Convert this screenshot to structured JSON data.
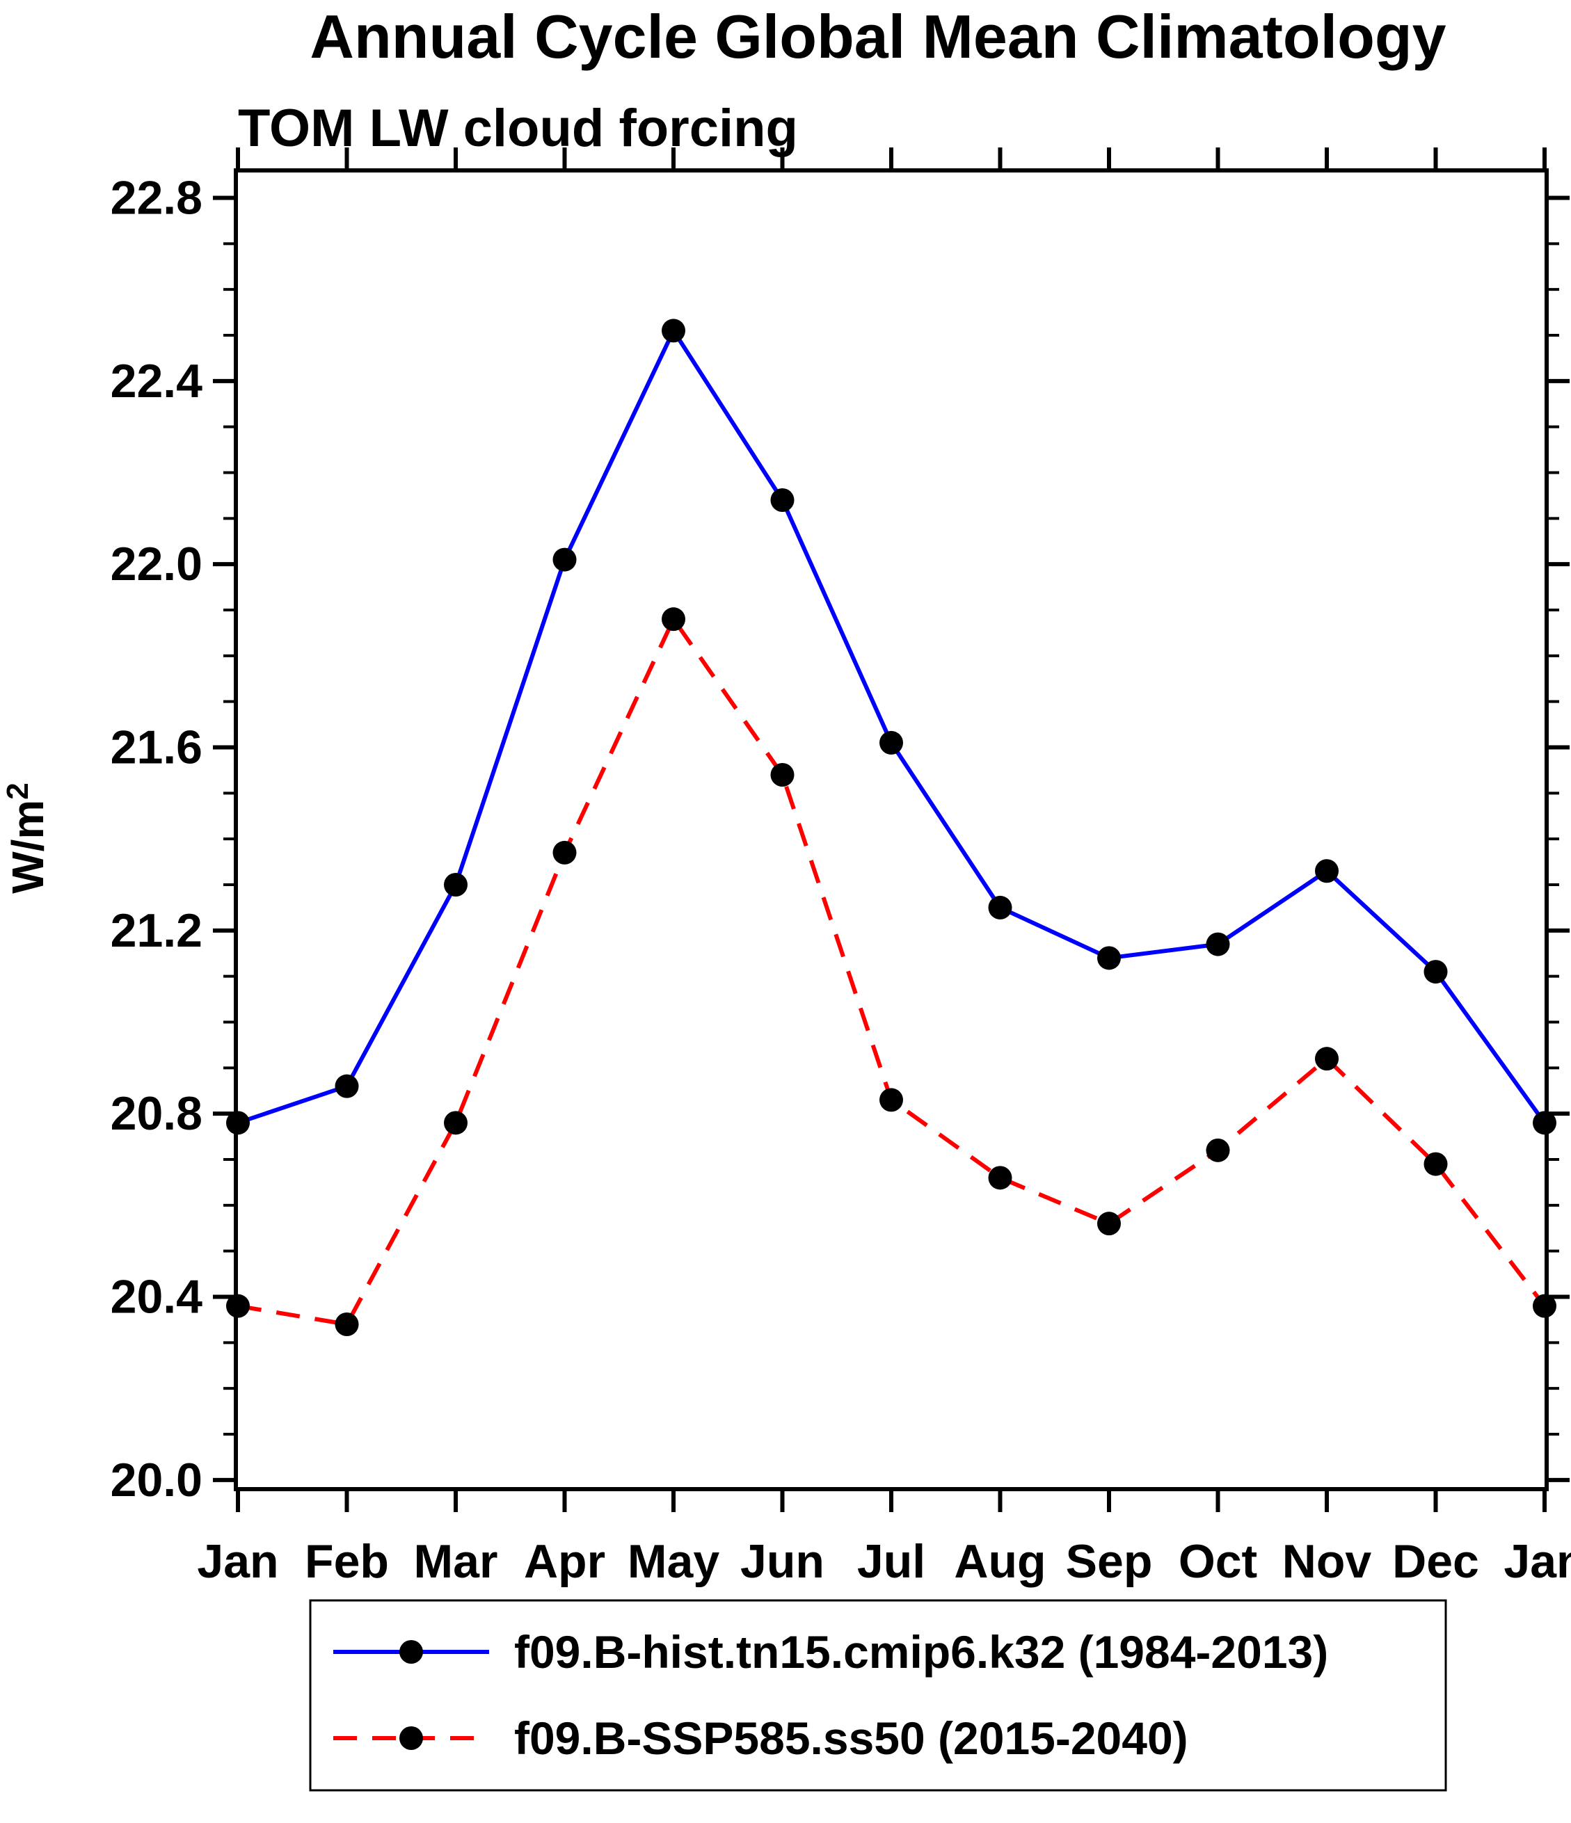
{
  "chart_data": {
    "type": "line",
    "title": "Annual Cycle Global Mean Climatology",
    "subtitle": "TOM LW cloud forcing",
    "ylabel": {
      "base": "W/m",
      "sup": "2",
      "text": "W/m²"
    },
    "categories": [
      "Jan",
      "Feb",
      "Mar",
      "Apr",
      "May",
      "Jun",
      "Jul",
      "Aug",
      "Sep",
      "Oct",
      "Nov",
      "Dec",
      "Jan"
    ],
    "yticks": [
      20.0,
      20.4,
      20.8,
      21.2,
      21.6,
      22.0,
      22.4,
      22.8
    ],
    "ytick_labels": [
      "20.0",
      "20.4",
      "20.8",
      "21.2",
      "21.6",
      "22.0",
      "22.4",
      "22.8"
    ],
    "ylim": [
      19.98,
      22.86
    ],
    "y_minor_step": 0.1,
    "grid": false,
    "legend_position": "bottom",
    "marker": {
      "shape": "circle",
      "color": "#000000"
    },
    "series": [
      {
        "id": "hist",
        "label": "f09.B-hist.tn15.cmip6.k32 (1984-2013)",
        "color": "#0000ff",
        "line_style": "solid",
        "values": [
          20.78,
          20.86,
          21.3,
          22.01,
          22.51,
          22.14,
          21.61,
          21.25,
          21.14,
          21.17,
          21.33,
          21.11,
          20.78
        ]
      },
      {
        "id": "ssp585",
        "label": "f09.B-SSP585.ss50 (2015-2040)",
        "color": "#ff0000",
        "line_style": "dashed",
        "values": [
          20.38,
          20.34,
          20.78,
          21.37,
          21.88,
          21.54,
          20.83,
          20.66,
          20.56,
          20.72,
          20.92,
          20.69,
          20.38
        ]
      }
    ]
  }
}
